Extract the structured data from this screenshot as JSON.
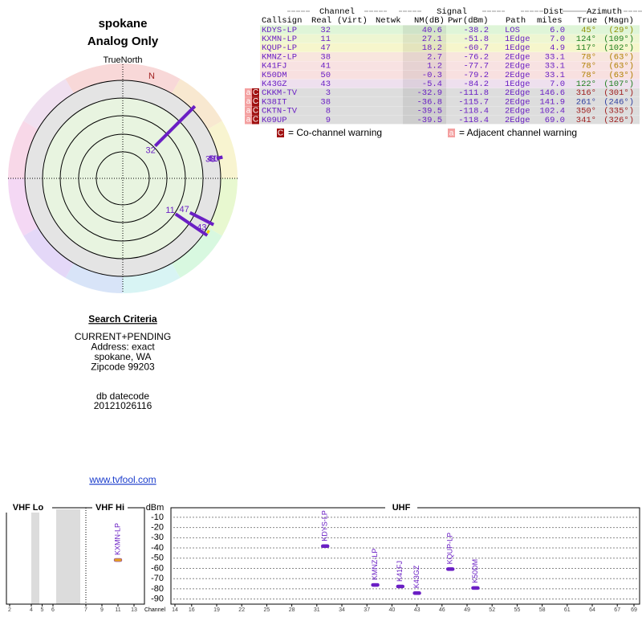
{
  "header": {
    "title": "spokane",
    "subtitle": "Analog Only",
    "true_north": "TrueNorth",
    "north": "N"
  },
  "polar": {
    "stations": [
      {
        "label": "32",
        "azimuth": 45,
        "nm": 40.6,
        "color": "#6a1fc4"
      },
      {
        "label": "11",
        "azimuth": 124,
        "nm": 27.1,
        "color": "#6a1fc4"
      },
      {
        "label": "47",
        "azimuth": 117,
        "nm": 18.2,
        "color": "#6a1fc4"
      },
      {
        "label": "38",
        "azimuth": 78,
        "nm": 2.7,
        "color": "#6a1fc4"
      },
      {
        "label": "41",
        "azimuth": 78,
        "nm": 1.2,
        "color": "#6a1fc4"
      },
      {
        "label": "50",
        "azimuth": 78,
        "nm": -0.3,
        "color": "#6a1fc4"
      },
      {
        "label": "43",
        "azimuth": 122,
        "nm": -5.4,
        "color": "#f0d000"
      }
    ]
  },
  "table": {
    "groups": [
      "Channel",
      "Signal",
      "Dist",
      "Azimuth"
    ],
    "headers": [
      "Callsign",
      "Real",
      "(Virt)",
      "Netwk",
      "NM(dB)",
      "Pwr(dBm)",
      "Path",
      "miles",
      "True",
      "(Magn)"
    ],
    "rows": [
      {
        "callsign": "KDYS-LP",
        "real": "32",
        "nm": "40.6",
        "pwr": "-38.2",
        "path": "LOS",
        "dist": "6.0",
        "true": "45°",
        "magn": "(29°)",
        "bg": "#dff5d8",
        "az_color": "#909000",
        "warn": []
      },
      {
        "callsign": "KXMN-LP",
        "real": "11",
        "nm": "27.1",
        "pwr": "-51.8",
        "path": "1Edge",
        "dist": "7.0",
        "true": "124°",
        "magn": "(109°)",
        "bg": "#eef6d2",
        "az_color": "#208020",
        "warn": []
      },
      {
        "callsign": "KQUP-LP",
        "real": "47",
        "nm": "18.2",
        "pwr": "-60.7",
        "path": "1Edge",
        "dist": "4.9",
        "true": "117°",
        "magn": "(102°)",
        "bg": "#f6f6cc",
        "az_color": "#208020",
        "warn": []
      },
      {
        "callsign": "KMNZ-LP",
        "real": "38",
        "nm": "2.7",
        "pwr": "-76.2",
        "path": "2Edge",
        "dist": "33.1",
        "true": "78°",
        "magn": "(63°)",
        "bg": "#f8e6de",
        "az_color": "#b08000",
        "warn": []
      },
      {
        "callsign": "K41FJ",
        "real": "41",
        "nm": "1.2",
        "pwr": "-77.7",
        "path": "2Edge",
        "dist": "33.1",
        "true": "78°",
        "magn": "(63°)",
        "bg": "#f8e2e2",
        "az_color": "#b08000",
        "warn": []
      },
      {
        "callsign": "K50DM",
        "real": "50",
        "nm": "-0.3",
        "pwr": "-79.2",
        "path": "2Edge",
        "dist": "33.1",
        "true": "78°",
        "magn": "(63°)",
        "bg": "#f8e0e0",
        "az_color": "#b08000",
        "warn": []
      },
      {
        "callsign": "K43GZ",
        "real": "43",
        "nm": "-5.4",
        "pwr": "-84.2",
        "path": "1Edge",
        "dist": "7.0",
        "true": "122°",
        "magn": "(107°)",
        "bg": "#eee0ee",
        "az_color": "#208020",
        "warn": []
      },
      {
        "callsign": "CKKM-TV",
        "real": "3",
        "nm": "-32.9",
        "pwr": "-111.8",
        "path": "2Edge",
        "dist": "146.6",
        "true": "316°",
        "magn": "(301°)",
        "bg": "#dddddd",
        "az_color": "#a02020",
        "warn": [
          "a",
          "C"
        ]
      },
      {
        "callsign": "K38IT",
        "real": "38",
        "nm": "-36.8",
        "pwr": "-115.7",
        "path": "2Edge",
        "dist": "141.9",
        "true": "261°",
        "magn": "(246°)",
        "bg": "#dddddd",
        "az_color": "#3040a0",
        "warn": [
          "a",
          "C"
        ]
      },
      {
        "callsign": "CKTN-TV",
        "real": "8",
        "nm": "-39.5",
        "pwr": "-118.4",
        "path": "2Edge",
        "dist": "102.4",
        "true": "350°",
        "magn": "(335°)",
        "bg": "#dddddd",
        "az_color": "#a02020",
        "warn": [
          "a",
          "C"
        ]
      },
      {
        "callsign": "K09UP",
        "real": "9",
        "nm": "-39.5",
        "pwr": "-118.4",
        "path": "2Edge",
        "dist": "69.0",
        "true": "341°",
        "magn": "(326°)",
        "bg": "#dddddd",
        "az_color": "#a02020",
        "warn": [
          "a",
          "C"
        ]
      }
    ],
    "legend": [
      {
        "symbol": "C",
        "text": "= Co-channel warning"
      },
      {
        "symbol": "a",
        "text": "= Adjacent channel warning"
      }
    ]
  },
  "search": {
    "title": "Search Criteria",
    "lines": [
      "CURRENT+PENDING",
      "Address: exact",
      "spokane, WA",
      "Zipcode 99203"
    ],
    "datecode_label": "db datecode",
    "datecode": "20121026116",
    "link": "www.tvfool.com"
  },
  "chart_data": {
    "type": "spectrum",
    "bands": [
      "VHF Lo",
      "VHF Hi",
      "UHF"
    ],
    "y_label": "dBm",
    "x_label": "Channel",
    "ylim": [
      -3,
      -95
    ],
    "yticks": [
      -10,
      -20,
      -30,
      -40,
      -50,
      -60,
      -70,
      -80,
      -90
    ],
    "xticks": [
      2,
      4,
      5,
      6,
      7,
      9,
      11,
      13,
      14,
      16,
      19,
      22,
      25,
      28,
      31,
      34,
      37,
      40,
      43,
      46,
      49,
      52,
      55,
      58,
      61,
      64,
      67,
      69
    ],
    "series": [
      {
        "name": "KXMN-LP",
        "channel": 11,
        "power": -51.8,
        "color": "#e8a020"
      },
      {
        "name": "KDYS-LP",
        "channel": 32,
        "power": -38.2,
        "color": "#6a1fc4"
      },
      {
        "name": "KMNZ-LP",
        "channel": 38,
        "power": -76.2,
        "color": "#6a1fc4"
      },
      {
        "name": "K41FJ",
        "channel": 41,
        "power": -77.7,
        "color": "#6a1fc4"
      },
      {
        "name": "K43GZ",
        "channel": 43,
        "power": -84.2,
        "color": "#6a1fc4"
      },
      {
        "name": "KQUP-LP",
        "channel": 47,
        "power": -60.7,
        "color": "#6a1fc4"
      },
      {
        "name": "K50DM",
        "channel": 50,
        "power": -79.2,
        "color": "#6a1fc4"
      }
    ]
  }
}
